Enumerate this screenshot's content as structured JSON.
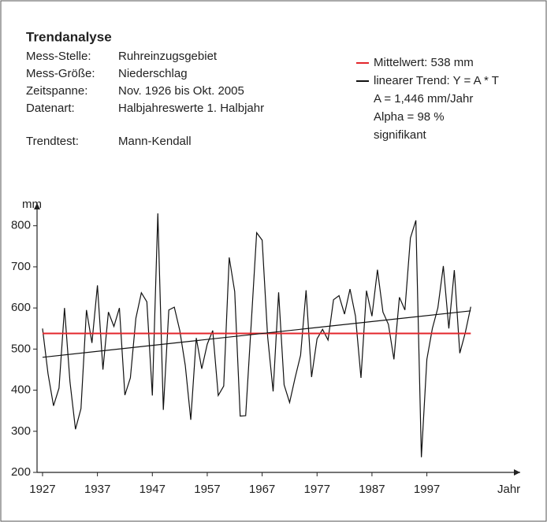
{
  "chart_data": {
    "type": "line",
    "title": "Trendanalyse",
    "info": [
      [
        "Mess-Stelle:",
        "Ruhreinzugsgebiet"
      ],
      [
        "Mess-Größe:",
        "Niederschlag"
      ],
      [
        "Zeitspanne:",
        "Nov. 1926 bis Okt. 2005"
      ],
      [
        "Datenart:",
        "Halbjahreswerte 1. Halbjahr"
      ],
      [
        "Trendtest:",
        "Mann-Kendall"
      ]
    ],
    "legend": {
      "mean": "Mittelwert: 538 mm",
      "trend": "linearer Trend: Y = A * T",
      "notes": [
        "A = 1,446 mm/Jahr",
        "Alpha = 98 %",
        "signifikant"
      ]
    },
    "y_label": "mm",
    "x_label": "Jahr",
    "x": [
      1927,
      1928,
      1929,
      1930,
      1931,
      1932,
      1933,
      1934,
      1935,
      1936,
      1937,
      1938,
      1939,
      1940,
      1941,
      1942,
      1943,
      1944,
      1945,
      1946,
      1947,
      1948,
      1949,
      1950,
      1951,
      1952,
      1953,
      1954,
      1955,
      1956,
      1957,
      1958,
      1959,
      1960,
      1961,
      1962,
      1963,
      1964,
      1965,
      1966,
      1967,
      1968,
      1969,
      1970,
      1971,
      1972,
      1973,
      1974,
      1975,
      1976,
      1977,
      1978,
      1979,
      1980,
      1981,
      1982,
      1983,
      1984,
      1985,
      1986,
      1987,
      1988,
      1989,
      1990,
      1991,
      1992,
      1993,
      1994,
      1995,
      1996,
      1997,
      1998,
      1999,
      2000,
      2001,
      2002,
      2003,
      2004,
      2005
    ],
    "series": [
      {
        "name": "Niederschlag",
        "color": "#111111",
        "values": [
          550,
          440,
          362,
          405,
          600,
          420,
          305,
          355,
          595,
          515,
          655,
          450,
          590,
          555,
          600,
          388,
          430,
          575,
          637,
          615,
          387,
          830,
          352,
          595,
          602,
          545,
          460,
          328,
          527,
          452,
          512,
          545,
          387,
          410,
          723,
          640,
          337,
          338,
          560,
          783,
          765,
          530,
          397,
          638,
          413,
          370,
          430,
          485,
          643,
          432,
          525,
          548,
          522,
          620,
          630,
          585,
          646,
          580,
          430,
          642,
          580,
          693,
          590,
          560,
          475,
          626,
          595,
          770,
          813,
          237,
          475,
          550,
          600,
          702,
          550,
          692,
          490,
          540,
          603
        ]
      },
      {
        "name": "Mittelwert",
        "color": "#e3262b",
        "x": [
          1927,
          2005
        ],
        "values": [
          538,
          538
        ]
      },
      {
        "name": "Trend",
        "color": "#111111",
        "x": [
          1927,
          2005
        ],
        "values": [
          480,
          593
        ]
      }
    ],
    "xlim": [
      1926,
      2014
    ],
    "xticks": [
      1927,
      1937,
      1947,
      1957,
      1967,
      1977,
      1987,
      1997
    ],
    "ylim": [
      200,
      855
    ],
    "yticks": [
      200,
      300,
      400,
      500,
      600,
      700,
      800
    ]
  }
}
